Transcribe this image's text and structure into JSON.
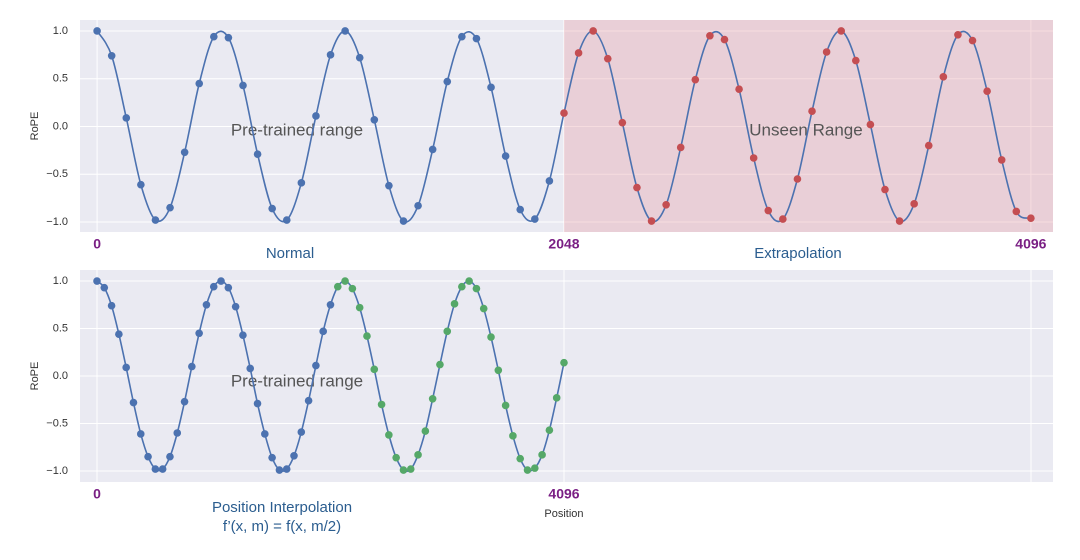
{
  "chart_data": [
    {
      "type": "scatter",
      "y_label": "RoPE",
      "curve": true,
      "curve_color": "#4c72b0",
      "grid": true,
      "background": "#eaeaf2",
      "xlim": [
        -75,
        4193
      ],
      "ylim": [
        -1.105,
        1.115
      ],
      "xticks": [
        0,
        2048,
        4096
      ],
      "xtick_color": "#7a1f84",
      "yticks": [
        {
          "value": 1,
          "label": "1.0"
        },
        0.5,
        {
          "value": 0,
          "label": "0.0"
        },
        {
          "value": -0.5,
          "label": "−0.5"
        },
        {
          "value": -1,
          "label": "−1.0"
        }
      ],
      "span": {
        "start": 2048,
        "color": "#e8a7ae"
      },
      "annotations": [
        {
          "text": "Pre-trained range"
        },
        {
          "text": "Unseen Range"
        },
        {
          "text": "Normal"
        },
        {
          "text": "Extrapolation"
        }
      ],
      "x": [
        0,
        64,
        128,
        192,
        256,
        320,
        384,
        448,
        512,
        576,
        640,
        704,
        768,
        832,
        896,
        960,
        1024,
        1088,
        1152,
        1216,
        1280,
        1344,
        1408,
        1472,
        1536,
        1600,
        1664,
        1728,
        1792,
        1856,
        1920,
        1984,
        2048,
        2112,
        2176,
        2240,
        2304,
        2368,
        2432,
        2496,
        2560,
        2624,
        2688,
        2752,
        2816,
        2880,
        2944,
        3008,
        3072,
        3136,
        3200,
        3264,
        3328,
        3392,
        3456,
        3520,
        3584,
        3648,
        3712,
        3776,
        3840,
        3904,
        3968,
        4032,
        4096
      ],
      "series": [
        {
          "color": "#4c72b0",
          "values": [
            1.0,
            0.74,
            0.09,
            -0.61,
            -0.98,
            -0.85,
            -0.27,
            0.45,
            0.94,
            0.93,
            0.43,
            -0.29,
            -0.86,
            -0.98,
            -0.59,
            0.11,
            0.75,
            1.0,
            0.72,
            0.07,
            -0.62,
            -0.99,
            -0.83,
            -0.24,
            0.47,
            0.94,
            0.92,
            0.41,
            -0.31,
            -0.87,
            -0.97,
            -0.57,
            null,
            null,
            null,
            null,
            null,
            null,
            null,
            null,
            null,
            null,
            null,
            null,
            null,
            null,
            null,
            null,
            null,
            null,
            null,
            null,
            null,
            null,
            null,
            null,
            null,
            null,
            null,
            null,
            null,
            null,
            null,
            null,
            null
          ]
        },
        {
          "color": "#c44e52",
          "values": [
            null,
            null,
            null,
            null,
            null,
            null,
            null,
            null,
            null,
            null,
            null,
            null,
            null,
            null,
            null,
            null,
            null,
            null,
            null,
            null,
            null,
            null,
            null,
            null,
            null,
            null,
            null,
            null,
            null,
            null,
            null,
            null,
            0.14,
            0.77,
            1.0,
            0.71,
            0.04,
            -0.64,
            -0.99,
            -0.82,
            -0.22,
            0.49,
            0.95,
            0.91,
            0.39,
            -0.33,
            -0.88,
            -0.97,
            -0.55,
            0.16,
            0.78,
            1.0,
            0.69,
            0.02,
            -0.66,
            -0.99,
            -0.81,
            -0.2,
            0.52,
            0.96,
            0.9,
            0.37,
            -0.35,
            -0.89,
            -0.96
          ]
        }
      ]
    },
    {
      "type": "scatter",
      "y_label": "RoPE",
      "x_label": "Position",
      "curve": true,
      "curve_color": "#4c72b0",
      "grid": true,
      "background": "#eaeaf2",
      "xlim": [
        -149,
        8385
      ],
      "ylim": [
        -1.116,
        1.116
      ],
      "xticks": [
        0,
        4096,
        {
          "value": 8192,
          "label": null
        }
      ],
      "xtick_color": "#7a1f84",
      "yticks": [
        {
          "value": 1,
          "label": "1.0"
        },
        0.5,
        {
          "value": 0,
          "label": "0.0"
        },
        {
          "value": -0.5,
          "label": "−0.5"
        },
        {
          "value": -1,
          "label": "−1.0"
        }
      ],
      "annotations": [
        {
          "text": "Pre-trained range"
        },
        {
          "text": "Position Interpolation"
        },
        {
          "text": "f’(x, m) = f(x, m/2)"
        }
      ],
      "x": [
        0,
        64,
        128,
        192,
        256,
        320,
        384,
        448,
        512,
        576,
        640,
        704,
        768,
        832,
        896,
        960,
        1024,
        1088,
        1152,
        1216,
        1280,
        1344,
        1408,
        1472,
        1536,
        1600,
        1664,
        1728,
        1792,
        1856,
        1920,
        1984,
        2048,
        2112,
        2176,
        2240,
        2304,
        2368,
        2432,
        2496,
        2560,
        2624,
        2688,
        2752,
        2816,
        2880,
        2944,
        3008,
        3072,
        3136,
        3200,
        3264,
        3328,
        3392,
        3456,
        3520,
        3584,
        3648,
        3712,
        3776,
        3840,
        3904,
        3968,
        4032,
        4096
      ],
      "series": [
        {
          "color": "#4c72b0",
          "values": [
            1.0,
            0.93,
            0.74,
            0.44,
            0.09,
            -0.28,
            -0.61,
            -0.85,
            -0.98,
            -0.98,
            -0.85,
            -0.6,
            -0.27,
            0.1,
            0.45,
            0.75,
            0.94,
            1.0,
            0.93,
            0.73,
            0.43,
            0.08,
            -0.29,
            -0.61,
            -0.86,
            -0.99,
            -0.98,
            -0.84,
            -0.59,
            -0.26,
            0.11,
            0.47,
            0.75,
            null,
            null,
            null,
            null,
            null,
            null,
            null,
            null,
            null,
            null,
            null,
            null,
            null,
            null,
            null,
            null,
            null,
            null,
            null,
            null,
            null,
            null,
            null,
            null,
            null,
            null,
            null,
            null,
            null,
            null,
            null,
            null
          ]
        },
        {
          "color": "#55a868",
          "values": [
            null,
            null,
            null,
            null,
            null,
            null,
            null,
            null,
            null,
            null,
            null,
            null,
            null,
            null,
            null,
            null,
            null,
            null,
            null,
            null,
            null,
            null,
            null,
            null,
            null,
            null,
            null,
            null,
            null,
            null,
            null,
            null,
            null,
            0.94,
            1.0,
            0.92,
            0.72,
            0.42,
            0.07,
            -0.3,
            -0.62,
            -0.86,
            -0.99,
            -0.98,
            -0.83,
            -0.58,
            -0.24,
            0.12,
            0.47,
            0.76,
            0.94,
            1.0,
            0.92,
            0.71,
            0.41,
            0.06,
            -0.31,
            -0.63,
            -0.87,
            -0.99,
            -0.97,
            -0.83,
            -0.57,
            -0.23,
            0.14
          ]
        }
      ]
    }
  ]
}
